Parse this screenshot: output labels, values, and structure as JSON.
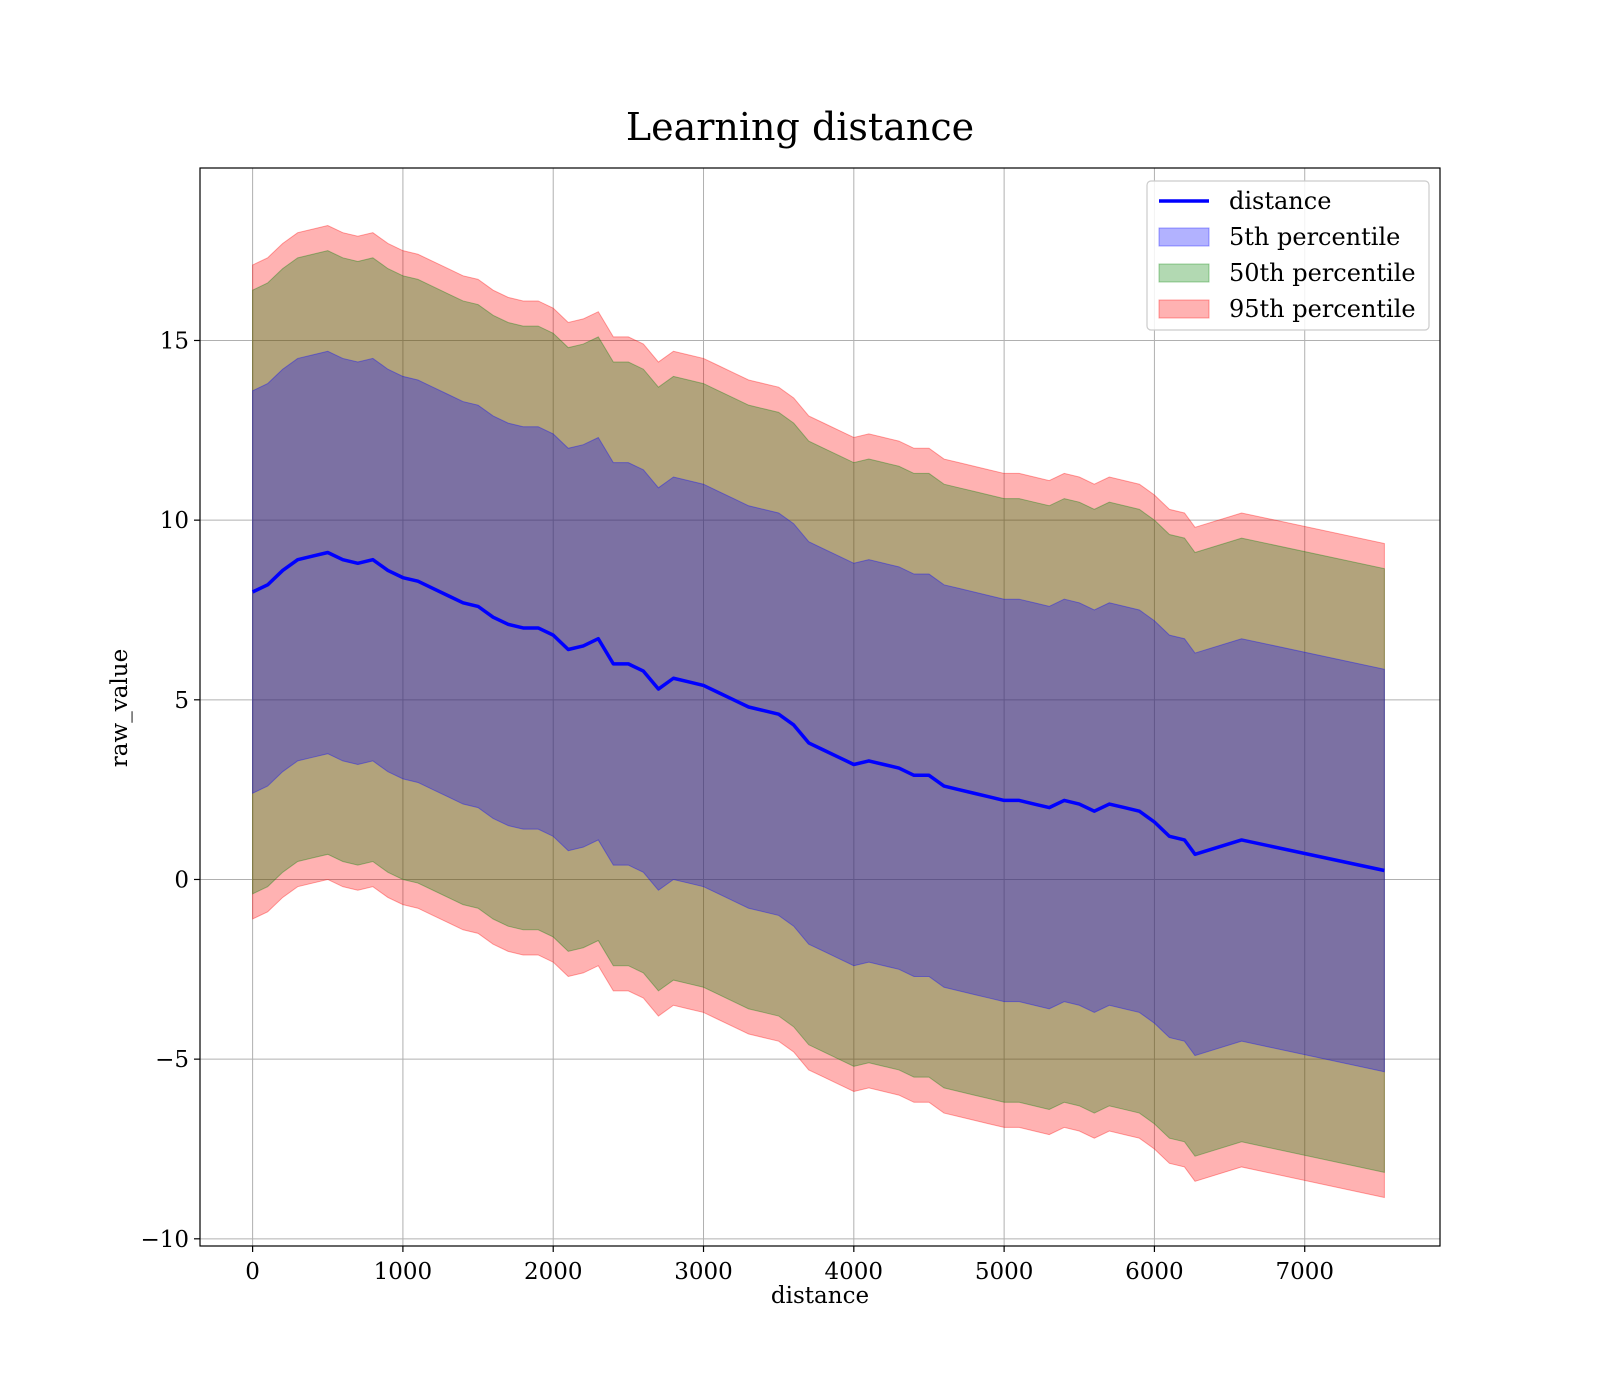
{
  "chart_data": {
    "type": "area",
    "title": "Learning distance",
    "xlabel": "distance",
    "ylabel": "raw_value",
    "xlim": [
      -350,
      7900
    ],
    "ylim": [
      -10.2,
      19.8
    ],
    "x_ticks": [
      0,
      1000,
      2000,
      3000,
      4000,
      5000,
      6000,
      7000
    ],
    "x_tick_labels": [
      "0",
      "1000",
      "2000",
      "3000",
      "4000",
      "5000",
      "6000",
      "7000"
    ],
    "y_ticks": [
      -10,
      -5,
      0,
      5,
      10,
      15
    ],
    "y_tick_labels": [
      "−10",
      "−5",
      "0",
      "5",
      "10",
      "15"
    ],
    "grid": true,
    "legend_position": "top-right",
    "x": [
      0,
      100,
      200,
      300,
      400,
      500,
      600,
      700,
      800,
      900,
      1000,
      1100,
      1200,
      1300,
      1400,
      1500,
      1600,
      1700,
      1800,
      1900,
      2000,
      2100,
      2200,
      2300,
      2400,
      2500,
      2600,
      2700,
      2800,
      2900,
      3000,
      3100,
      3200,
      3300,
      3400,
      3500,
      3600,
      3700,
      3800,
      3900,
      4000,
      4100,
      4200,
      4300,
      4400,
      4500,
      4600,
      4700,
      4800,
      4900,
      5000,
      5100,
      5200,
      5300,
      5400,
      5500,
      5600,
      5700,
      5800,
      5900,
      6000,
      6100,
      6200,
      6270,
      6580,
      7530
    ],
    "series": [
      {
        "name": "distance",
        "kind": "line",
        "color": "#0000ff",
        "values": [
          8.0,
          8.2,
          8.6,
          8.9,
          9.0,
          9.1,
          8.9,
          8.8,
          8.9,
          8.6,
          8.4,
          8.3,
          8.1,
          7.9,
          7.7,
          7.6,
          7.3,
          7.1,
          7.0,
          7.0,
          6.8,
          6.4,
          6.5,
          6.7,
          6.0,
          6.0,
          5.8,
          5.3,
          5.6,
          5.5,
          5.4,
          5.2,
          5.0,
          4.8,
          4.7,
          4.6,
          4.3,
          3.8,
          3.6,
          3.4,
          3.2,
          3.3,
          3.2,
          3.1,
          2.9,
          2.9,
          2.6,
          2.5,
          2.4,
          2.3,
          2.2,
          2.2,
          2.1,
          2.0,
          2.2,
          2.1,
          1.9,
          2.1,
          2.0,
          1.9,
          1.6,
          1.2,
          1.1,
          0.7,
          1.1,
          0.25
        ]
      },
      {
        "name": "5th percentile",
        "kind": "band",
        "color": "#0000ff",
        "opacity": 0.3,
        "offset": 5.6
      },
      {
        "name": "50th percentile",
        "kind": "band",
        "color": "#008000",
        "opacity": 0.3,
        "offset": 8.4
      },
      {
        "name": "95th percentile",
        "kind": "band",
        "color": "#ff0000",
        "opacity": 0.3,
        "offset": 9.1
      }
    ]
  }
}
